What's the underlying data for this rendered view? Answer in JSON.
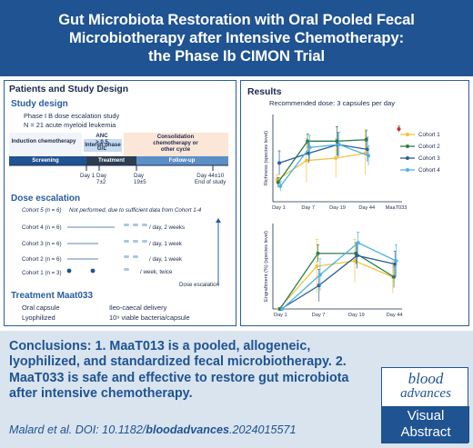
{
  "header": {
    "title": "Gut Microbiota Restoration with Oral Pooled Fecal\nMicrobiotherapy after Intensive Chemotherapy:\nthe Phase Ib CIMON Trial"
  },
  "left_panel": {
    "title": "Patients and Study Design",
    "study_design": {
      "heading": "Study design",
      "lines": [
        "Phase I B dose escalation study",
        "N = 21 acute myeloid leukemia"
      ]
    },
    "timeline": {
      "phases": [
        "Induction\nchemotherapy",
        "Interim phase",
        "Consolidation\nchemotherapy or\nother cycle"
      ],
      "anc": "ANC\n> 0.5\nG/L",
      "bands": [
        "Screening",
        "Treatment",
        "Follow-up"
      ],
      "days": [
        "Day 1",
        "Day\n7±2",
        "Day\n19±5",
        "Day 44±10\nEnd of study"
      ]
    },
    "dose_escalation": {
      "heading": "Dose escalation",
      "cohorts": [
        {
          "label": "Cohort 5 (n = 6)",
          "schedule": "Not performed, due to sufficient data from Cohort 1-4"
        },
        {
          "label": "Cohort 4 (n = 6)",
          "schedule": "/ day, 2 weeks"
        },
        {
          "label": "Cohort 3 (n = 6)",
          "schedule": "/ day, 1 week"
        },
        {
          "label": "Cohort 2 (n = 6)",
          "schedule": "/ day, 1 week"
        },
        {
          "label": "Cohort 1 (n = 3)",
          "schedule": "/ week, twice"
        }
      ],
      "arrow_label": "Dose escalation"
    },
    "treatment": {
      "heading": "Treatment Maat033",
      "rows": [
        {
          "k": "Oral capsule",
          "v": "Ileo-caecal delivery"
        },
        {
          "k": "Lyophilized",
          "v": "10⁹ viable bacteria/capsule"
        }
      ]
    }
  },
  "right_panel": {
    "title": "Results",
    "subtitle": "Recommended dose: 3 capsules per day"
  },
  "chart_data": [
    {
      "type": "line",
      "title": "",
      "ylabel": "Richness (species level)",
      "categories": [
        "Day 1",
        "Day 7",
        "Day 19",
        "Day 44",
        "MaaT033"
      ],
      "ylim": [
        0,
        180
      ],
      "series": [
        {
          "name": "Cohort 1",
          "color": "#f3c23c",
          "values": [
            45,
            85,
            90,
            100,
            null
          ],
          "err": [
            10,
            45,
            40,
            45,
            null
          ]
        },
        {
          "name": "Cohort 2",
          "color": "#2e7d4f",
          "values": [
            40,
            125,
            125,
            128,
            null
          ],
          "err": [
            10,
            15,
            30,
            20,
            null
          ]
        },
        {
          "name": "Cohort 3",
          "color": "#2a5d9f",
          "values": [
            80,
            100,
            118,
            108,
            null
          ],
          "err": [
            25,
            20,
            25,
            25,
            null
          ]
        },
        {
          "name": "Cohort 4",
          "color": "#4fb3e0",
          "values": [
            32,
            112,
            118,
            95,
            null
          ],
          "err": [
            10,
            25,
            25,
            20,
            null
          ]
        },
        {
          "name": "MaaT033",
          "color": "#c9302c",
          "values": [
            null,
            null,
            null,
            null,
            150
          ],
          "err": [
            null,
            null,
            null,
            null,
            6
          ]
        }
      ]
    },
    {
      "type": "line",
      "title": "",
      "ylabel": "Engraftment (%) (species level)",
      "categories": [
        "Day 1",
        "Day 7",
        "Day 19",
        "Day 44"
      ],
      "ylim": [
        0,
        80
      ],
      "series": [
        {
          "name": "Cohort 1",
          "color": "#f3c23c",
          "values": [
            0,
            40,
            45,
            30
          ],
          "err": [
            0,
            25,
            20,
            15
          ]
        },
        {
          "name": "Cohort 2",
          "color": "#2e7d4f",
          "values": [
            0,
            52,
            52,
            30
          ],
          "err": [
            0,
            8,
            10,
            10
          ]
        },
        {
          "name": "Cohort 3",
          "color": "#2a5d9f",
          "values": [
            0,
            22,
            50,
            42
          ],
          "err": [
            0,
            15,
            12,
            12
          ]
        },
        {
          "name": "Cohort 4",
          "color": "#4fb3e0",
          "values": [
            0,
            32,
            62,
            45
          ],
          "err": [
            0,
            15,
            10,
            15
          ]
        }
      ]
    }
  ],
  "conclusions": {
    "text": "Conclusions: 1. MaaT013 is a pooled, allogeneic, lyophilized, and standardized fecal microbiotherapy. 2. MaaT033 is safe and effective to restore gut microbiota after intensive chemotherapy."
  },
  "citation": {
    "authors": "Malard et al.",
    "doi_prefix": "DOI: 10.1182/",
    "doi_journal": "bloodadvances",
    "doi_suffix": ".2024015571"
  },
  "logo": {
    "line1": "blood",
    "line2": "advances",
    "line3": "Visual",
    "line4": "Abstract"
  },
  "colors": {
    "brand": "#1f5392",
    "screening": "#1f5392",
    "treatment": "#2c3e50",
    "followup": "#5b8fc7"
  }
}
